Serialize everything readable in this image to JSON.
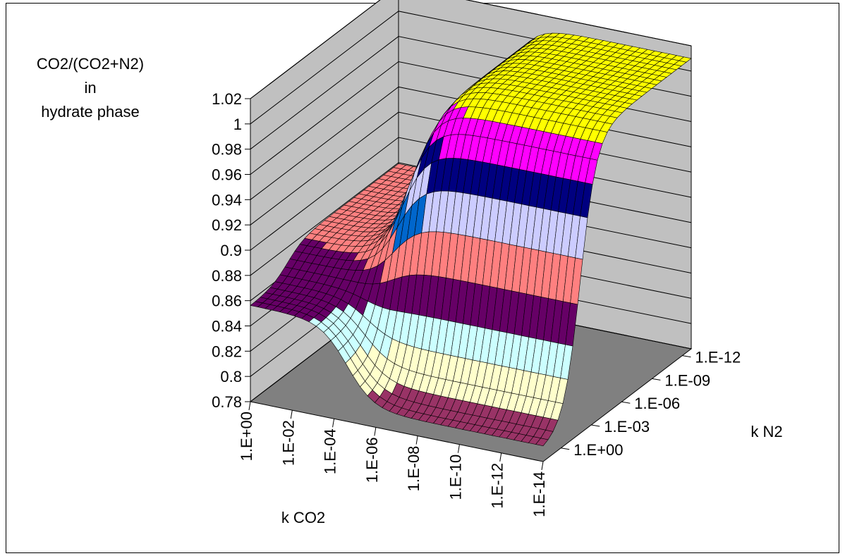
{
  "chart_data": {
    "type": "surface",
    "zlabel_lines": [
      "CO2/(CO2+N2)",
      "in",
      "hydrate phase"
    ],
    "xlabel": "k CO2",
    "ylabel": "k N2",
    "z_ticks": [
      "1.02",
      "1",
      "0.98",
      "0.96",
      "0.94",
      "0.92",
      "0.9",
      "0.88",
      "0.86",
      "0.84",
      "0.82",
      "0.8",
      "0.78"
    ],
    "z_tick_values": [
      1.02,
      1.0,
      0.98,
      0.96,
      0.94,
      0.92,
      0.9,
      0.88,
      0.86,
      0.84,
      0.82,
      0.8,
      0.78
    ],
    "zlim": [
      0.78,
      1.02
    ],
    "x_ticks": [
      "1.E+00",
      "1.E-02",
      "1.E-04",
      "1.E-06",
      "1.E-08",
      "1.E-10",
      "1.E-12",
      "1.E-14"
    ],
    "y_ticks": [
      "1.E+00",
      "1.E-03",
      "1.E-06",
      "1.E-09",
      "1.E-12"
    ],
    "plateau_values": {
      "low_region": 0.79,
      "high_kN2_edge": 0.856,
      "top_plateau": 1.01
    },
    "band_colors": [
      "#993366",
      "#FFFFCC",
      "#CCFFFF",
      "#660066",
      "#FF8080",
      "#0066CC",
      "#CCCCFF",
      "#000080",
      "#FF00FF",
      "#FFFF00"
    ],
    "floor_color": "#808080",
    "wall_color": "#C0C0C0",
    "grid": true
  }
}
